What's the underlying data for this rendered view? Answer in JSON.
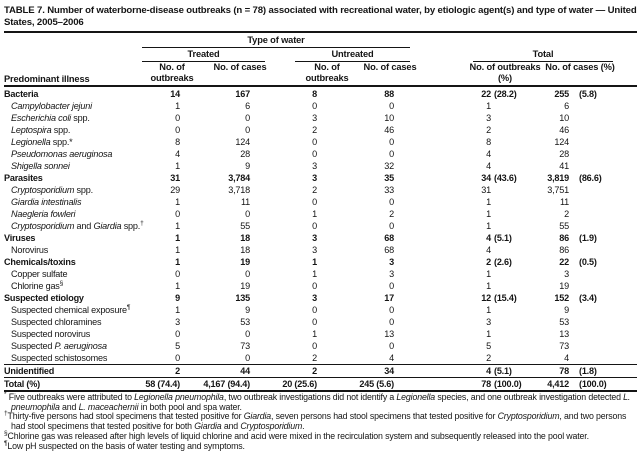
{
  "title": "TABLE 7. Number of waterborne-disease outbreaks (n = 78) associated with recreational water, by etiologic agent(s) and type of water — United States, 2005–2006",
  "header": {
    "row_label": "Predominant illness",
    "spanner": "Type of water",
    "groups": [
      {
        "label": "Treated"
      },
      {
        "label": "Untreated"
      },
      {
        "label": "Total"
      }
    ],
    "columns": [
      "No. of outbreaks",
      "No. of cases",
      "No. of outbreaks",
      "No. of cases",
      "No. of outbreaks (%)",
      "No. of cases (%)"
    ]
  },
  "table": {
    "rows": [
      {
        "label": [
          {
            "t": "Bacteria"
          }
        ],
        "bold": true,
        "v": [
          "14",
          "167",
          "8",
          "88",
          "22",
          "(28.2)",
          "255",
          "(5.8)"
        ]
      },
      {
        "label": [
          {
            "t": "Campylobacter jejuni",
            "i": true
          }
        ],
        "indent": true,
        "v": [
          "1",
          "6",
          "0",
          "0",
          "1",
          "",
          "6",
          ""
        ]
      },
      {
        "label": [
          {
            "t": "Escherichia coli",
            "i": true
          },
          {
            "t": " spp."
          }
        ],
        "indent": true,
        "v": [
          "0",
          "0",
          "3",
          "10",
          "3",
          "",
          "10",
          ""
        ]
      },
      {
        "label": [
          {
            "t": "Leptospira",
            "i": true
          },
          {
            "t": " spp."
          }
        ],
        "indent": true,
        "v": [
          "0",
          "0",
          "2",
          "46",
          "2",
          "",
          "46",
          ""
        ]
      },
      {
        "label": [
          {
            "t": "Legionella",
            "i": true
          },
          {
            "t": " spp.*"
          }
        ],
        "indent": true,
        "v": [
          "8",
          "124",
          "0",
          "0",
          "8",
          "",
          "124",
          ""
        ]
      },
      {
        "label": [
          {
            "t": "Pseudomonas aeruginosa",
            "i": true
          }
        ],
        "indent": true,
        "v": [
          "4",
          "28",
          "0",
          "0",
          "4",
          "",
          "28",
          ""
        ]
      },
      {
        "label": [
          {
            "t": "Shigella sonnei",
            "i": true
          }
        ],
        "indent": true,
        "v": [
          "1",
          "9",
          "3",
          "32",
          "4",
          "",
          "41",
          ""
        ]
      },
      {
        "label": [
          {
            "t": "Parasites"
          }
        ],
        "bold": true,
        "v": [
          "31",
          "3,784",
          "3",
          "35",
          "34",
          "(43.6)",
          "3,819",
          "(86.6)"
        ]
      },
      {
        "label": [
          {
            "t": "Cryptosporidium",
            "i": true
          },
          {
            "t": " spp."
          }
        ],
        "indent": true,
        "v": [
          "29",
          "3,718",
          "2",
          "33",
          "31",
          "",
          "3,751",
          ""
        ]
      },
      {
        "label": [
          {
            "t": "Giardia intestinalis",
            "i": true
          }
        ],
        "indent": true,
        "v": [
          "1",
          "11",
          "0",
          "0",
          "1",
          "",
          "11",
          ""
        ]
      },
      {
        "label": [
          {
            "t": "Naegleria fowleri",
            "i": true
          }
        ],
        "indent": true,
        "v": [
          "0",
          "0",
          "1",
          "2",
          "1",
          "",
          "2",
          ""
        ]
      },
      {
        "label": [
          {
            "t": "Cryptosporidium",
            "i": true
          },
          {
            "t": " and "
          },
          {
            "t": "Giardia",
            "i": true
          },
          {
            "t": " spp."
          },
          {
            "t": "†",
            "s": true
          }
        ],
        "indent": true,
        "v": [
          "1",
          "55",
          "0",
          "0",
          "1",
          "",
          "55",
          ""
        ]
      },
      {
        "label": [
          {
            "t": "Viruses"
          }
        ],
        "bold": true,
        "v": [
          "1",
          "18",
          "3",
          "68",
          "4",
          "(5.1)",
          "86",
          "(1.9)"
        ]
      },
      {
        "label": [
          {
            "t": "Norovirus"
          }
        ],
        "indent": true,
        "v": [
          "1",
          "18",
          "3",
          "68",
          "4",
          "",
          "86",
          ""
        ]
      },
      {
        "label": [
          {
            "t": "Chemicals/toxins"
          }
        ],
        "bold": true,
        "v": [
          "1",
          "19",
          "1",
          "3",
          "2",
          "(2.6)",
          "22",
          "(0.5)"
        ]
      },
      {
        "label": [
          {
            "t": "Copper sulfate"
          }
        ],
        "indent": true,
        "v": [
          "0",
          "0",
          "1",
          "3",
          "1",
          "",
          "3",
          ""
        ]
      },
      {
        "label": [
          {
            "t": "Chlorine gas"
          },
          {
            "t": "§",
            "s": true
          }
        ],
        "indent": true,
        "v": [
          "1",
          "19",
          "0",
          "0",
          "1",
          "",
          "19",
          ""
        ]
      },
      {
        "label": [
          {
            "t": "Suspected etiology"
          }
        ],
        "bold": true,
        "v": [
          "9",
          "135",
          "3",
          "17",
          "12",
          "(15.4)",
          "152",
          "(3.4)"
        ]
      },
      {
        "label": [
          {
            "t": "Suspected chemical exposure"
          },
          {
            "t": "¶",
            "s": true
          }
        ],
        "indent": true,
        "v": [
          "1",
          "9",
          "0",
          "0",
          "1",
          "",
          "9",
          ""
        ]
      },
      {
        "label": [
          {
            "t": "Suspected chloramines"
          }
        ],
        "indent": true,
        "v": [
          "3",
          "53",
          "0",
          "0",
          "3",
          "",
          "53",
          ""
        ]
      },
      {
        "label": [
          {
            "t": "Suspected norovirus"
          }
        ],
        "indent": true,
        "v": [
          "0",
          "0",
          "1",
          "13",
          "1",
          "",
          "13",
          ""
        ]
      },
      {
        "label": [
          {
            "t": "Suspected "
          },
          {
            "t": "P. aeruginosa",
            "i": true
          }
        ],
        "indent": true,
        "v": [
          "5",
          "73",
          "0",
          "0",
          "5",
          "",
          "73",
          ""
        ]
      },
      {
        "label": [
          {
            "t": "Suspected schistosomes"
          }
        ],
        "indent": true,
        "v": [
          "0",
          "0",
          "2",
          "4",
          "2",
          "",
          "4",
          ""
        ]
      },
      {
        "label": [
          {
            "t": "Unidentified"
          }
        ],
        "bold": true,
        "rule_above": true,
        "v": [
          "2",
          "44",
          "2",
          "34",
          "4",
          "(5.1)",
          "78",
          "(1.8)"
        ]
      },
      {
        "label": [
          {
            "t": "Total (%)"
          }
        ],
        "bold": true,
        "rule_above": true,
        "last": true,
        "v": [
          "58 (74.4)",
          "4,167 (94.4)",
          "20 (25.6)",
          "245 (5.6)",
          "78",
          "(100.0)",
          "4,412",
          "(100.0)"
        ]
      }
    ]
  },
  "footnotes": [
    {
      "marker": "*",
      "segments": [
        {
          "t": " Five outbreaks were attributed to "
        },
        {
          "t": "Legionella pneumophila",
          "i": true
        },
        {
          "t": ", two outbreak investigations did not identify a "
        },
        {
          "t": "Legionella",
          "i": true
        },
        {
          "t": " species, and one outbreak investigation detected "
        },
        {
          "t": "L. pneumophila",
          "i": true
        },
        {
          "t": " and "
        },
        {
          "t": "L. maceachernii",
          "i": true
        },
        {
          "t": " in both pool and spa water."
        }
      ]
    },
    {
      "marker": "†",
      "segments": [
        {
          "t": "Thirty-five persons had stool specimens that tested positive for "
        },
        {
          "t": "Giardia",
          "i": true
        },
        {
          "t": ", seven persons had stool specimens that tested positive for "
        },
        {
          "t": "Cryptosporidium",
          "i": true
        },
        {
          "t": ", and two persons had stool specimens that tested positive for both "
        },
        {
          "t": "Giardia",
          "i": true
        },
        {
          "t": " and "
        },
        {
          "t": "Cryptosporidium",
          "i": true
        },
        {
          "t": "."
        }
      ]
    },
    {
      "marker": "§",
      "segments": [
        {
          "t": "Chlorine gas was released after high levels of liquid chlorine and acid were mixed in the recirculation system and subsequently released into the pool water."
        }
      ]
    },
    {
      "marker": "¶",
      "segments": [
        {
          "t": "Low pH suspected on the basis of water testing and symptoms."
        }
      ]
    }
  ]
}
